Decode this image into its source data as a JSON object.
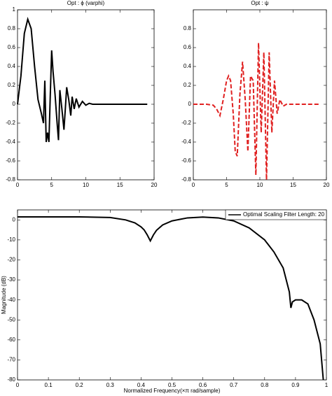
{
  "chart_data": [
    {
      "type": "line",
      "title": "Opt : ϕ (varphi)",
      "series": [
        {
          "name": "ϕ",
          "color": "#000000",
          "linestyle": "solid",
          "x": [
            0,
            0.5,
            1,
            1.5,
            2,
            2.5,
            3,
            3.5,
            3.8,
            4,
            4.2,
            4.4,
            4.6,
            4.8,
            5,
            5.2,
            5.5,
            5.8,
            6,
            6.2,
            6.5,
            6.8,
            7,
            7.2,
            7.5,
            7.8,
            8,
            8.3,
            8.6,
            9,
            9.5,
            10,
            10.5,
            11,
            12,
            15,
            19
          ],
          "values": [
            0,
            0.3,
            0.75,
            0.9,
            0.8,
            0.4,
            0.05,
            -0.1,
            -0.2,
            0.25,
            -0.4,
            -0.3,
            -0.4,
            0.1,
            0.57,
            0.35,
            0.1,
            -0.2,
            -0.38,
            0.15,
            -0.05,
            -0.27,
            -0.05,
            0.18,
            0.05,
            -0.12,
            0.08,
            -0.05,
            0.06,
            -0.03,
            0.03,
            -0.01,
            0.01,
            0,
            0,
            0,
            0
          ]
        }
      ],
      "xlim": [
        0,
        20
      ],
      "xticks": [
        0,
        5,
        10,
        15,
        20
      ],
      "ylim": [
        -0.8,
        1
      ],
      "yticks": [
        -0.8,
        -0.6,
        -0.4,
        -0.2,
        0,
        0.2,
        0.4,
        0.6,
        0.8,
        1
      ]
    },
    {
      "type": "line",
      "title": "Opt : ψ",
      "series": [
        {
          "name": "ψ",
          "color": "#e02020",
          "linestyle": "dashed",
          "x": [
            0,
            2,
            3,
            3.5,
            4,
            4.5,
            5,
            5.3,
            5.6,
            6,
            6.3,
            6.6,
            7,
            7.4,
            7.8,
            8.2,
            8.6,
            9,
            9.4,
            9.8,
            10.2,
            10.6,
            11,
            11.4,
            11.8,
            12.2,
            12.6,
            13,
            13.5,
            14,
            16,
            19
          ],
          "values": [
            0,
            0,
            -0.01,
            -0.05,
            -0.12,
            0.05,
            0.25,
            0.3,
            0.25,
            -0.1,
            -0.5,
            -0.55,
            0.1,
            0.45,
            0.05,
            -0.5,
            0.3,
            0.25,
            -0.75,
            0.65,
            -0.3,
            0.55,
            -0.8,
            0.55,
            -0.3,
            0.25,
            -0.1,
            0.05,
            -0.02,
            0,
            0,
            0
          ]
        }
      ],
      "xlim": [
        0,
        20
      ],
      "xticks": [
        0,
        5,
        10,
        15,
        20
      ],
      "ylim": [
        -0.8,
        1
      ],
      "yticks": [
        -0.8,
        -0.6,
        -0.4,
        -0.2,
        0,
        0.2,
        0.4,
        0.6,
        0.8
      ]
    },
    {
      "type": "line",
      "xlabel": "Normalized Frequency(×π rad/sample)",
      "ylabel": "Magnitude (dB)",
      "legend": "upper right",
      "series": [
        {
          "name": "Optimal Scaling Filter Length: 20",
          "color": "#000000",
          "linestyle": "solid",
          "x": [
            0,
            0.1,
            0.2,
            0.3,
            0.35,
            0.38,
            0.4,
            0.41,
            0.42,
            0.43,
            0.44,
            0.45,
            0.47,
            0.5,
            0.55,
            0.6,
            0.65,
            0.7,
            0.75,
            0.8,
            0.83,
            0.86,
            0.88,
            0.885,
            0.89,
            0.9,
            0.92,
            0.94,
            0.96,
            0.98,
            0.99
          ],
          "values": [
            1.5,
            1.5,
            1.5,
            1.2,
            0,
            -1.5,
            -3.5,
            -5,
            -7.5,
            -10.5,
            -7.5,
            -5.2,
            -2.5,
            -0.5,
            1,
            1.4,
            1,
            -0.5,
            -4,
            -10,
            -16,
            -24,
            -36,
            -44,
            -41,
            -40,
            -40,
            -42,
            -50,
            -62,
            -80
          ]
        }
      ],
      "xlim": [
        0,
        1
      ],
      "xticks": [
        0,
        0.1,
        0.2,
        0.3,
        0.4,
        0.5,
        0.6,
        0.7,
        0.8,
        0.9,
        1
      ],
      "ylim": [
        -80,
        5
      ],
      "yticks": [
        -80,
        -70,
        -60,
        -50,
        -40,
        -30,
        -20,
        -10,
        0
      ]
    }
  ]
}
